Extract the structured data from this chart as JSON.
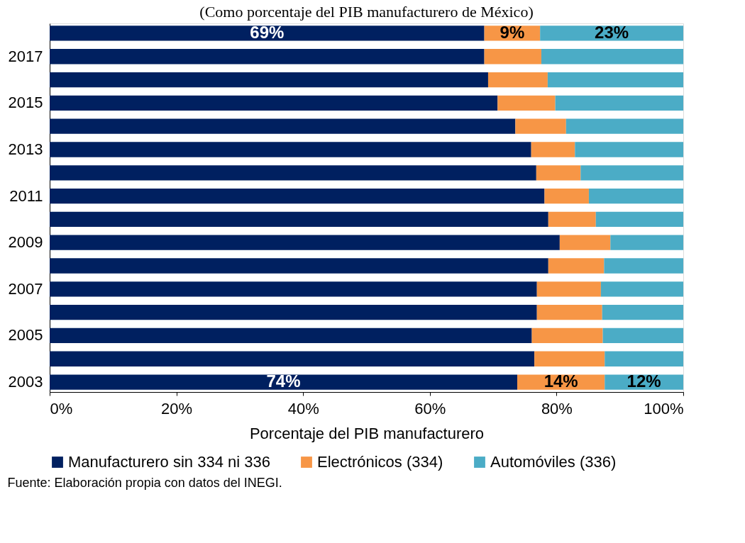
{
  "chart_data": {
    "type": "bar",
    "orientation": "horizontal",
    "stacked": true,
    "title": "(Como porcentaje del PIB manufacturero de México)",
    "xlabel": "Porcentaje del PIB manufacturero",
    "categories": [
      null,
      "2017",
      null,
      "2015",
      null,
      "2013",
      null,
      "2011",
      null,
      "2009",
      null,
      "2007",
      null,
      "2005",
      null,
      "2003"
    ],
    "series": [
      {
        "name": "Manufacturero sin 334 ni 336",
        "color": "#002060",
        "values": [
          68.6,
          68.6,
          69.2,
          70.7,
          73.5,
          76.0,
          76.8,
          78.1,
          78.7,
          80.5,
          78.7,
          76.9,
          76.9,
          76.1,
          76.5,
          73.8
        ],
        "value_labels": [
          "69%",
          null,
          null,
          null,
          null,
          null,
          null,
          null,
          null,
          null,
          null,
          null,
          null,
          null,
          null,
          "74%"
        ]
      },
      {
        "name": "Electrónicos (334)",
        "color": "#f79646",
        "values": [
          8.8,
          9.0,
          9.4,
          9.1,
          8.0,
          6.9,
          7.0,
          7.0,
          7.5,
          8.0,
          8.8,
          10.1,
          10.3,
          11.2,
          11.1,
          13.8
        ],
        "value_labels": [
          "9%",
          null,
          null,
          null,
          null,
          null,
          null,
          null,
          null,
          null,
          null,
          null,
          null,
          null,
          null,
          "14%"
        ]
      },
      {
        "name": "Automóviles (336)",
        "color": "#4bacc6",
        "values": [
          22.6,
          22.4,
          21.4,
          20.2,
          18.5,
          17.1,
          16.2,
          14.9,
          13.8,
          11.5,
          12.5,
          13.0,
          12.8,
          12.7,
          12.4,
          12.4
        ],
        "value_labels": [
          "23%",
          null,
          null,
          null,
          null,
          null,
          null,
          null,
          null,
          null,
          null,
          null,
          null,
          null,
          null,
          "12%"
        ]
      }
    ],
    "xlim": [
      0,
      100
    ],
    "xticks": [
      {
        "value": 0,
        "label": "0%"
      },
      {
        "value": 20,
        "label": "20%"
      },
      {
        "value": 40,
        "label": "40%"
      },
      {
        "value": 60,
        "label": "60%"
      },
      {
        "value": 80,
        "label": "80%"
      },
      {
        "value": 100,
        "label": "100%"
      }
    ],
    "grid": false,
    "legend": "bottom",
    "annotations": [
      "Fuente: Elaboración propia con datos del INEGI."
    ]
  }
}
